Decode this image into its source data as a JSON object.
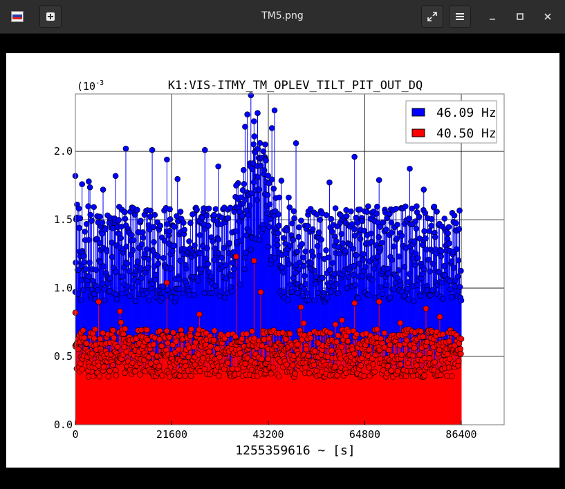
{
  "window": {
    "title": "TM5.png"
  },
  "icons": {
    "app": "image-viewer-icon",
    "new_tab": "plus-icon",
    "fullscreen": "fullscreen-icon",
    "menu": "hamburger-menu-icon",
    "minimize": "minimize-icon",
    "maximize": "maximize-icon",
    "close": "close-icon"
  },
  "chart_data": {
    "type": "scatter",
    "title": "K1:VIS-ITMY_TM_OPLEV_TILT_PIT_OUT_DQ",
    "xlabel": "1255359616 ~ [s]",
    "ylabel": "",
    "y_multiplier": "(10",
    "y_multiplier_exp": "-3",
    "xlim": [
      0,
      96000
    ],
    "ylim": [
      0,
      2.42
    ],
    "xticks": [
      0,
      21600,
      43200,
      64800,
      86400
    ],
    "xtick_labels": [
      "0",
      "21600",
      "43200",
      "64800",
      "86400"
    ],
    "yticks": [
      0,
      0.5,
      1.0,
      1.5,
      2.0
    ],
    "ytick_labels": [
      "0.0",
      "0.5",
      "1.0",
      "1.5",
      "2.0"
    ],
    "grid": true,
    "legend_position": "top-right",
    "series": [
      {
        "name": "46.09 Hz",
        "color": "#0000ff",
        "style": "stem",
        "typical_range": [
          0.9,
          1.6
        ],
        "peaks": [
          {
            "x": 0,
            "y": 1.82
          },
          {
            "x": 1500,
            "y": 1.76
          },
          {
            "x": 3000,
            "y": 1.78
          },
          {
            "x": 6200,
            "y": 1.72
          },
          {
            "x": 9000,
            "y": 1.82
          },
          {
            "x": 11300,
            "y": 2.02
          },
          {
            "x": 17200,
            "y": 2.01
          },
          {
            "x": 20500,
            "y": 1.94
          },
          {
            "x": 29000,
            "y": 2.01
          },
          {
            "x": 32000,
            "y": 1.89
          },
          {
            "x": 36000,
            "y": 1.75
          },
          {
            "x": 38000,
            "y": 2.18
          },
          {
            "x": 38500,
            "y": 2.27
          },
          {
            "x": 39300,
            "y": 2.41
          },
          {
            "x": 40000,
            "y": 2.22
          },
          {
            "x": 40800,
            "y": 2.28
          },
          {
            "x": 42500,
            "y": 2.05
          },
          {
            "x": 44000,
            "y": 2.17
          },
          {
            "x": 44600,
            "y": 2.3
          },
          {
            "x": 49400,
            "y": 2.06
          },
          {
            "x": 62500,
            "y": 1.96
          },
          {
            "x": 68000,
            "y": 1.79
          },
          {
            "x": 78000,
            "y": 1.72
          }
        ]
      },
      {
        "name": "40.50 Hz",
        "color": "#ff0000",
        "style": "stem",
        "typical_range": [
          0.35,
          0.7
        ],
        "peaks": [
          {
            "x": 0,
            "y": 0.82
          },
          {
            "x": 5200,
            "y": 0.9
          },
          {
            "x": 10000,
            "y": 0.83
          },
          {
            "x": 20500,
            "y": 1.04
          },
          {
            "x": 36000,
            "y": 1.23
          },
          {
            "x": 40000,
            "y": 1.2
          },
          {
            "x": 41500,
            "y": 0.97
          },
          {
            "x": 50500,
            "y": 0.86
          },
          {
            "x": 62500,
            "y": 0.89
          },
          {
            "x": 68000,
            "y": 0.9
          },
          {
            "x": 78500,
            "y": 0.85
          }
        ]
      }
    ]
  }
}
